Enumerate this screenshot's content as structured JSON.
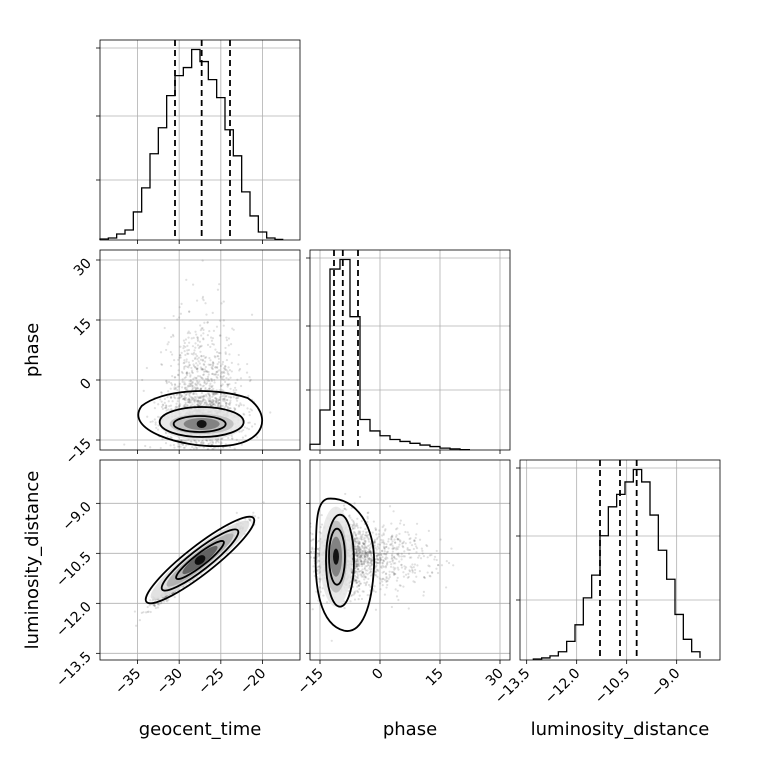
{
  "chart_data": {
    "type": "corner",
    "parameters": [
      "geocent_time",
      "phase",
      "luminosity_distance"
    ],
    "ranges": {
      "geocent_time": [
        -39.5,
        -15.5
      ],
      "phase": [
        -17.5,
        32.5
      ],
      "luminosity_distance": [
        -13.7,
        -7.7
      ]
    },
    "ticks": {
      "geocent_time": [
        -35,
        -30,
        -25,
        -20
      ],
      "phase": [
        -15,
        0,
        15,
        30
      ],
      "luminosity_distance": [
        -13.5,
        -12.0,
        -10.5,
        -9.0
      ]
    },
    "tick_labels": {
      "geocent_time": [
        "−35",
        "−30",
        "−25",
        "−20"
      ],
      "phase": [
        "−15",
        "0",
        "15",
        "30"
      ],
      "luminosity_distance": [
        "−13.5",
        "−12.0",
        "−10.5",
        "−9.0"
      ]
    },
    "quantiles": {
      "geocent_time": [
        -30.5,
        -27.3,
        -23.9
      ],
      "phase": [
        -11.5,
        -9.3,
        -5.5
      ],
      "luminosity_distance": [
        -11.3,
        -10.7,
        -10.2
      ]
    },
    "histograms": {
      "geocent_time": {
        "edges": [
          -39.5,
          -38.5,
          -37.5,
          -36.5,
          -35.5,
          -34.5,
          -33.5,
          -32.5,
          -31.5,
          -30.5,
          -29.5,
          -28.5,
          -27.5,
          -26.5,
          -25.5,
          -24.5,
          -23.5,
          -22.5,
          -21.5,
          -20.5,
          -19.5,
          -18.5,
          -17.5
        ],
        "counts": [
          0.5,
          1.0,
          3.0,
          5.0,
          14.0,
          26.0,
          43.0,
          56.0,
          72.0,
          82.0,
          86.0,
          95.0,
          89.0,
          80.0,
          71.0,
          55.0,
          42.0,
          24.0,
          12.0,
          4.0,
          1.0,
          0.3
        ]
      },
      "phase": {
        "edges": [
          -17.5,
          -15.0,
          -12.5,
          -10.0,
          -7.5,
          -5.0,
          -2.5,
          0.0,
          2.5,
          5.0,
          7.5,
          10.0,
          12.5,
          15.0,
          17.5,
          20.0,
          22.5
        ],
        "counts": [
          3.0,
          21.0,
          95.0,
          100.0,
          70.0,
          16.0,
          10.0,
          7.5,
          5.5,
          4.5,
          3.5,
          2.6,
          1.8,
          1.0,
          0.6,
          0.2
        ]
      },
      "luminosity_distance": {
        "edges": [
          -13.3,
          -13.05,
          -12.8,
          -12.55,
          -12.3,
          -12.05,
          -11.8,
          -11.55,
          -11.3,
          -11.05,
          -10.8,
          -10.55,
          -10.3,
          -10.05,
          -9.8,
          -9.55,
          -9.3,
          -9.05,
          -8.8,
          -8.55,
          -8.3
        ],
        "counts": [
          0.5,
          1.0,
          2.0,
          4.0,
          9.0,
          17.0,
          30.0,
          41.0,
          60.0,
          74.0,
          80.0,
          86.0,
          92.0,
          86.0,
          70.0,
          53.0,
          39.0,
          22.0,
          10.0,
          4.0,
          1.0
        ]
      }
    },
    "panels_2d": [
      {
        "x": "geocent_time",
        "y": "phase",
        "center": [
          -27.3,
          -11.0
        ],
        "peak": [
          -27.3,
          -11.0
        ]
      },
      {
        "x": "geocent_time",
        "y": "luminosity_distance",
        "center": [
          -27.5,
          -10.8
        ],
        "peak": [
          -27.5,
          -10.7
        ]
      },
      {
        "x": "phase",
        "y": "luminosity_distance",
        "center": [
          -10.0,
          -10.6
        ],
        "peak": [
          -11.0,
          -10.6
        ]
      }
    ],
    "grid": true
  }
}
